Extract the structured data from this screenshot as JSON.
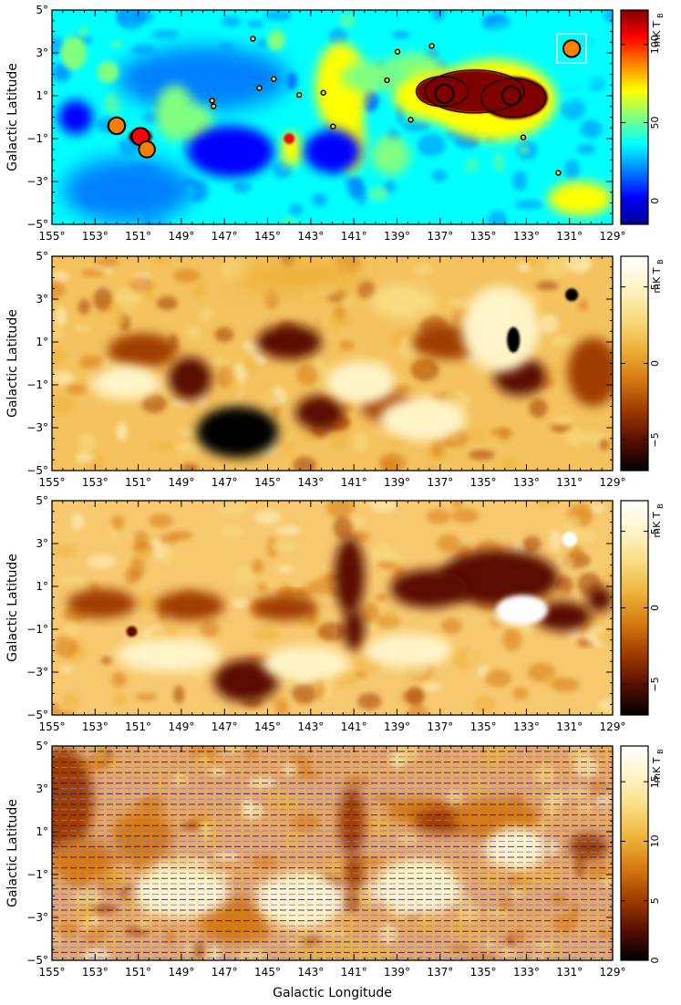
{
  "figure": {
    "x_axis_label": "Galactic Longitude",
    "y_axis_label": "Galactic Latitude",
    "colorbar_unit": "mK T",
    "colorbar_unit_sub": "B"
  },
  "chart_data": [
    {
      "type": "heatmap",
      "title": "",
      "xlabel": "",
      "ylabel": "Galactic Latitude",
      "x_ticks": [
        "155°",
        "153°",
        "151°",
        "149°",
        "147°",
        "145°",
        "143°",
        "141°",
        "139°",
        "137°",
        "135°",
        "133°",
        "131°",
        "129°"
      ],
      "y_ticks": [
        "5°",
        "3°",
        "1°",
        "−1°",
        "−3°",
        "−5°"
      ],
      "xlim": [
        155,
        129
      ],
      "ylim": [
        -5,
        5
      ],
      "colorbar": {
        "label": "mK T_B",
        "ticks": [
          0,
          50,
          100
        ],
        "range": [
          -15,
          122
        ],
        "colormap": "jet"
      },
      "features": [
        {
          "label": "source box",
          "l": 130.9,
          "b": 3.2
        }
      ],
      "bright_sources": [
        {
          "l": 136.8,
          "b": 1.1,
          "value": 122
        },
        {
          "l": 133.7,
          "b": 1.0,
          "value": 122
        },
        {
          "l": 150.9,
          "b": -0.9,
          "value": 110
        },
        {
          "l": 152.0,
          "b": -0.4,
          "value": 90
        },
        {
          "l": 150.6,
          "b": -1.5,
          "value": 80
        },
        {
          "l": 130.9,
          "b": 3.2,
          "value": 95
        }
      ]
    },
    {
      "type": "heatmap",
      "title": "",
      "xlabel": "",
      "ylabel": "Galactic Latitude",
      "x_ticks": [
        "155°",
        "153°",
        "151°",
        "149°",
        "147°",
        "145°",
        "143°",
        "141°",
        "139°",
        "137°",
        "135°",
        "133°",
        "131°",
        "129°"
      ],
      "y_ticks": [
        "5°",
        "3°",
        "1°",
        "−1°",
        "−3°",
        "−5°"
      ],
      "xlim": [
        155,
        129
      ],
      "ylim": [
        -5,
        5
      ],
      "colorbar": {
        "label": "mK T_B",
        "ticks": [
          -5,
          0,
          5
        ],
        "range": [
          -7,
          7
        ],
        "colormap": "heat"
      }
    },
    {
      "type": "heatmap",
      "title": "",
      "xlabel": "",
      "ylabel": "Galactic Latitude",
      "x_ticks": [
        "155°",
        "153°",
        "151°",
        "149°",
        "147°",
        "145°",
        "143°",
        "141°",
        "139°",
        "137°",
        "135°",
        "133°",
        "131°",
        "129°"
      ],
      "y_ticks": [
        "5°",
        "3°",
        "1°",
        "−1°",
        "−3°",
        "−5°"
      ],
      "xlim": [
        155,
        129
      ],
      "ylim": [
        -5,
        5
      ],
      "colorbar": {
        "label": "mK T_B",
        "ticks": [
          -5,
          0,
          5
        ],
        "range": [
          -7,
          7
        ],
        "colormap": "heat"
      }
    },
    {
      "type": "heatmap",
      "title": "",
      "xlabel": "Galactic Longitude",
      "ylabel": "Galactic Latitude",
      "x_ticks": [
        "155°",
        "153°",
        "151°",
        "149°",
        "147°",
        "145°",
        "143°",
        "141°",
        "139°",
        "137°",
        "135°",
        "133°",
        "131°",
        "129°"
      ],
      "y_ticks": [
        "5°",
        "3°",
        "1°",
        "−1°",
        "−3°",
        "−5°"
      ],
      "xlim": [
        155,
        129
      ],
      "ylim": [
        -5,
        5
      ],
      "colorbar": {
        "label": "mK T_B",
        "ticks": [
          0,
          5,
          10,
          15
        ],
        "range": [
          0,
          18
        ],
        "colormap": "heat"
      },
      "overlay": "polarization vectors (blue)"
    }
  ]
}
